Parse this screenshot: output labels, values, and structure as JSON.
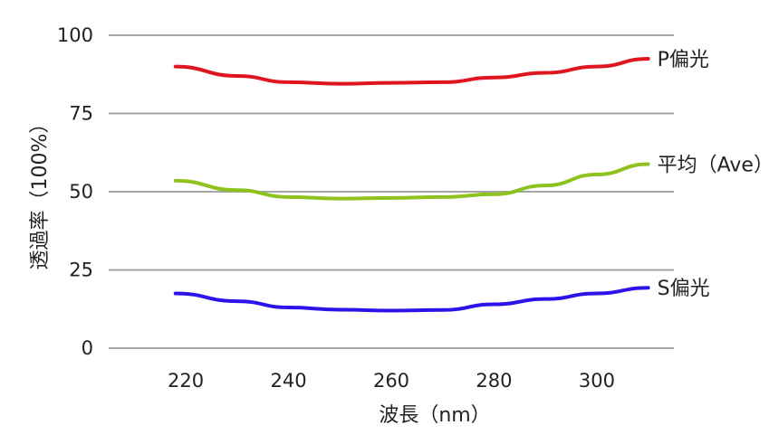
{
  "chart_data": {
    "type": "line",
    "title": "",
    "xlabel": "波長（nm）",
    "ylabel": "透過率（100%）",
    "xlim": [
      205,
      315
    ],
    "ylim": [
      0,
      100
    ],
    "x_ticks": [
      "220",
      "240",
      "260",
      "280",
      "300"
    ],
    "y_ticks": [
      "100",
      "75",
      "50",
      "25",
      "0"
    ],
    "grid": true,
    "legend": "inline-right",
    "series": [
      {
        "name": "P偏光",
        "color": "#e0151f",
        "x": [
          218,
          230,
          240,
          250,
          260,
          270,
          280,
          290,
          300,
          310
        ],
        "y": [
          90,
          87,
          85,
          84.5,
          84.8,
          85,
          86.5,
          88,
          90,
          92.5
        ]
      },
      {
        "name": "平均（Ave）",
        "color": "#8dc21f",
        "x": [
          218,
          230,
          240,
          250,
          260,
          270,
          280,
          290,
          300,
          310
        ],
        "y": [
          53.5,
          50.5,
          48.3,
          47.8,
          48,
          48.3,
          49.2,
          52,
          55.5,
          58.8
        ]
      },
      {
        "name": "S偏光",
        "color": "#2d12ea",
        "x": [
          218,
          230,
          240,
          250,
          260,
          270,
          280,
          290,
          300,
          310
        ],
        "y": [
          17.5,
          15,
          13,
          12.3,
          12,
          12.2,
          14,
          15.7,
          17.5,
          19.3
        ]
      }
    ]
  }
}
